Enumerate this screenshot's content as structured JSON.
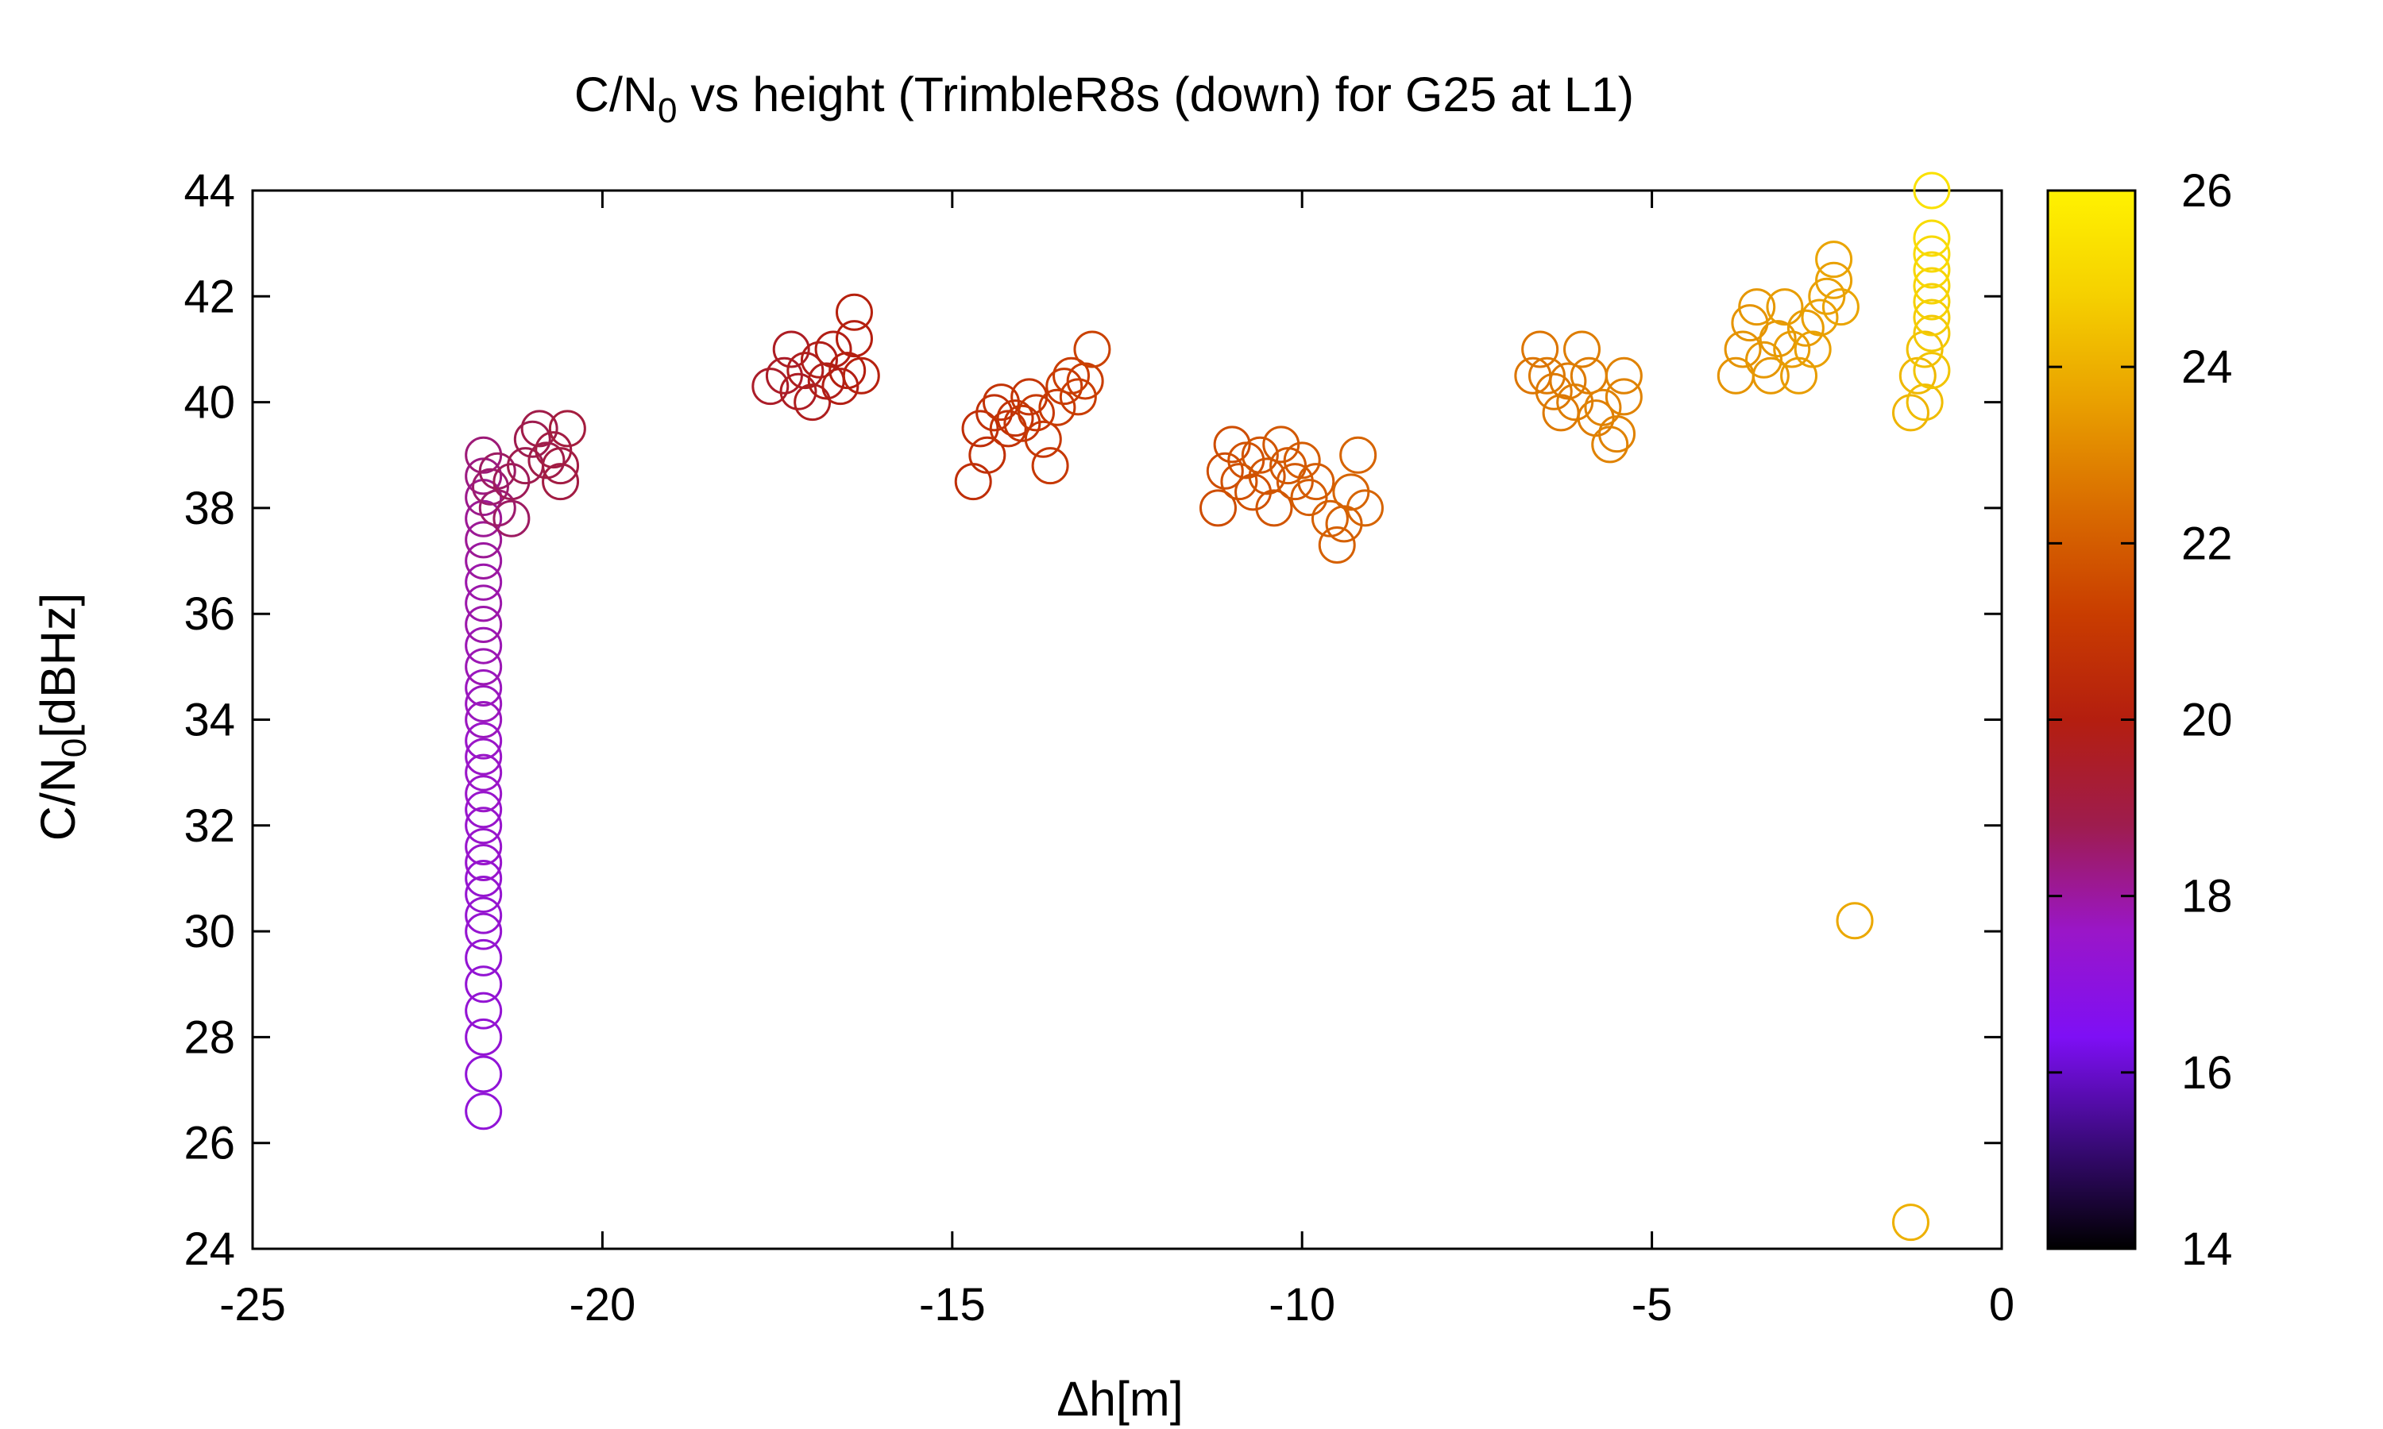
{
  "chart_data": {
    "type": "scatter",
    "title": "C/N0 vs height (TrimbleR8s (down) for G25 at L1)",
    "title_parts": {
      "pre": "C/N",
      "sub": "0",
      "post": " vs height (TrimbleR8s (down) for G25 at L1)"
    },
    "xlabel": "Δh[m]",
    "ylabel": "C/N0[dBHz]",
    "ylabel_parts": {
      "pre": "C/N",
      "sub": "0",
      "post": "[dBHz]"
    },
    "xlim": [
      -25,
      0
    ],
    "ylim": [
      24,
      44
    ],
    "xticks": [
      -25,
      -20,
      -15,
      -10,
      -5,
      0
    ],
    "yticks": [
      24,
      26,
      28,
      30,
      32,
      34,
      36,
      38,
      40,
      42,
      44
    ],
    "xtick_labels": [
      "-25",
      "-20",
      "-15",
      "-10",
      "-5",
      "0"
    ],
    "ytick_labels": [
      "24",
      "26",
      "28",
      "30",
      "32",
      "34",
      "36",
      "38",
      "40",
      "42",
      "44"
    ],
    "colorbar": {
      "range": [
        14,
        26
      ],
      "ticks": [
        14,
        16,
        18,
        20,
        22,
        24,
        26
      ],
      "tick_labels": [
        "14",
        "16",
        "18",
        "20",
        "22",
        "24",
        "26"
      ],
      "palette": [
        "#000000",
        "#3a0a7a",
        "#7e0ff5",
        "#9a16c8",
        "#9e1c4e",
        "#b41e0f",
        "#c93d00",
        "#d96c00",
        "#e9a000",
        "#f5d000",
        "#fff200"
      ]
    },
    "marker": "open-circle",
    "grid": false,
    "legend": "none",
    "series": [
      {
        "points": [
          [
            -21.7,
            26.6,
            17.2
          ],
          [
            -21.7,
            27.3,
            17.2
          ],
          [
            -21.7,
            28.0,
            17.3
          ],
          [
            -21.7,
            28.5,
            17.3
          ],
          [
            -21.7,
            29.0,
            17.3
          ],
          [
            -21.7,
            29.5,
            17.3
          ],
          [
            -21.7,
            30.0,
            17.4
          ],
          [
            -21.7,
            30.3,
            17.4
          ],
          [
            -21.7,
            30.7,
            17.4
          ],
          [
            -21.7,
            31.0,
            17.4
          ],
          [
            -21.7,
            31.3,
            17.5
          ],
          [
            -21.7,
            31.6,
            17.5
          ],
          [
            -21.7,
            32.0,
            17.5
          ],
          [
            -21.7,
            32.3,
            17.5
          ],
          [
            -21.7,
            32.6,
            17.6
          ],
          [
            -21.7,
            33.0,
            17.6
          ],
          [
            -21.7,
            33.3,
            17.6
          ],
          [
            -21.7,
            33.6,
            17.6
          ],
          [
            -21.7,
            34.0,
            17.7
          ],
          [
            -21.7,
            34.3,
            17.7
          ],
          [
            -21.7,
            34.6,
            17.7
          ],
          [
            -21.7,
            35.0,
            17.8
          ],
          [
            -21.7,
            35.4,
            17.8
          ],
          [
            -21.7,
            35.8,
            17.9
          ],
          [
            -21.7,
            36.2,
            17.9
          ],
          [
            -21.7,
            36.6,
            17.9
          ],
          [
            -21.7,
            37.0,
            18.0
          ],
          [
            -21.7,
            37.4,
            18.1
          ],
          [
            -21.7,
            37.8,
            18.1
          ],
          [
            -21.7,
            38.2,
            18.2
          ],
          [
            -21.7,
            38.6,
            18.3
          ],
          [
            -21.7,
            39.0,
            18.4
          ],
          [
            -21.6,
            38.4,
            18.5
          ],
          [
            -21.5,
            38.0,
            18.5
          ],
          [
            -21.5,
            38.7,
            18.6
          ],
          [
            -21.3,
            37.8,
            18.6
          ],
          [
            -21.3,
            38.5,
            18.7
          ],
          [
            -21.1,
            38.8,
            18.8
          ],
          [
            -21.0,
            39.3,
            18.8
          ],
          [
            -20.9,
            39.5,
            18.9
          ],
          [
            -20.8,
            38.9,
            18.9
          ],
          [
            -20.7,
            39.1,
            19.0
          ],
          [
            -20.6,
            38.5,
            19.0
          ],
          [
            -20.6,
            38.8,
            19.0
          ],
          [
            -20.5,
            39.5,
            19.1
          ]
        ]
      },
      {
        "points": [
          [
            -17.6,
            40.3,
            19.5
          ],
          [
            -17.4,
            40.5,
            19.5
          ],
          [
            -17.3,
            41.0,
            19.6
          ],
          [
            -17.2,
            40.2,
            19.6
          ],
          [
            -17.1,
            40.6,
            19.7
          ],
          [
            -17.0,
            40.0,
            19.7
          ],
          [
            -16.9,
            40.8,
            19.8
          ],
          [
            -16.8,
            40.4,
            19.8
          ],
          [
            -16.7,
            41.0,
            19.9
          ],
          [
            -16.6,
            40.3,
            19.9
          ],
          [
            -16.5,
            40.6,
            20.0
          ],
          [
            -16.4,
            41.2,
            20.0
          ],
          [
            -16.4,
            41.7,
            20.1
          ],
          [
            -16.3,
            40.5,
            20.1
          ]
        ]
      },
      {
        "points": [
          [
            -14.7,
            38.5,
            20.6
          ],
          [
            -14.6,
            39.5,
            20.6
          ],
          [
            -14.5,
            39.0,
            20.7
          ],
          [
            -14.4,
            39.8,
            20.7
          ],
          [
            -14.3,
            40.0,
            20.8
          ],
          [
            -14.2,
            39.5,
            20.8
          ],
          [
            -14.1,
            39.7,
            20.8
          ],
          [
            -14.0,
            39.6,
            20.9
          ],
          [
            -13.9,
            40.1,
            20.9
          ],
          [
            -13.8,
            39.8,
            21.0
          ],
          [
            -13.7,
            39.3,
            21.0
          ],
          [
            -13.6,
            38.8,
            21.0
          ],
          [
            -13.5,
            39.9,
            21.1
          ],
          [
            -13.4,
            40.3,
            21.1
          ],
          [
            -13.3,
            40.5,
            21.2
          ],
          [
            -13.2,
            40.1,
            21.2
          ],
          [
            -13.1,
            40.4,
            21.2
          ],
          [
            -13.0,
            41.0,
            21.3
          ]
        ]
      },
      {
        "points": [
          [
            -11.2,
            38.0,
            21.6
          ],
          [
            -11.1,
            38.7,
            21.6
          ],
          [
            -11.0,
            39.2,
            21.6
          ],
          [
            -10.9,
            38.5,
            21.7
          ],
          [
            -10.8,
            38.9,
            21.7
          ],
          [
            -10.7,
            38.3,
            21.7
          ],
          [
            -10.6,
            39.0,
            21.8
          ],
          [
            -10.5,
            38.6,
            21.8
          ],
          [
            -10.4,
            38.0,
            21.8
          ],
          [
            -10.3,
            39.2,
            21.9
          ],
          [
            -10.2,
            38.8,
            21.9
          ],
          [
            -10.1,
            38.5,
            21.9
          ],
          [
            -10.0,
            38.9,
            22.0
          ],
          [
            -9.9,
            38.2,
            22.0
          ],
          [
            -9.8,
            38.5,
            22.0
          ],
          [
            -9.6,
            37.8,
            22.1
          ],
          [
            -9.5,
            37.3,
            22.1
          ],
          [
            -9.4,
            37.7,
            22.1
          ],
          [
            -9.3,
            38.3,
            22.2
          ],
          [
            -9.2,
            39.0,
            22.2
          ],
          [
            -9.1,
            38.0,
            22.2
          ]
        ]
      },
      {
        "points": [
          [
            -6.7,
            40.5,
            22.6
          ],
          [
            -6.6,
            41.0,
            22.6
          ],
          [
            -6.5,
            40.5,
            22.7
          ],
          [
            -6.4,
            40.2,
            22.7
          ],
          [
            -6.3,
            39.8,
            22.7
          ],
          [
            -6.2,
            40.4,
            22.7
          ],
          [
            -6.1,
            40.0,
            22.8
          ],
          [
            -6.0,
            41.0,
            22.8
          ],
          [
            -5.9,
            40.5,
            22.8
          ],
          [
            -5.8,
            39.7,
            22.8
          ],
          [
            -5.7,
            39.9,
            22.9
          ],
          [
            -5.6,
            39.2,
            22.9
          ],
          [
            -5.5,
            39.4,
            22.9
          ],
          [
            -5.4,
            40.1,
            22.9
          ],
          [
            -5.4,
            40.5,
            22.9
          ]
        ]
      },
      {
        "points": [
          [
            -3.8,
            40.5,
            23.3
          ],
          [
            -3.7,
            41.0,
            23.3
          ],
          [
            -3.6,
            41.5,
            23.3
          ],
          [
            -3.5,
            41.8,
            23.4
          ],
          [
            -3.4,
            40.8,
            23.4
          ],
          [
            -3.3,
            40.5,
            23.4
          ],
          [
            -3.2,
            41.2,
            23.4
          ],
          [
            -3.1,
            41.8,
            23.5
          ],
          [
            -3.0,
            41.0,
            23.5
          ],
          [
            -2.9,
            40.5,
            23.5
          ],
          [
            -2.8,
            41.4,
            23.5
          ],
          [
            -2.7,
            41.0,
            23.6
          ],
          [
            -2.6,
            41.6,
            23.6
          ],
          [
            -2.5,
            42.0,
            23.6
          ],
          [
            -2.4,
            42.3,
            23.6
          ],
          [
            -2.4,
            42.7,
            23.7
          ],
          [
            -2.3,
            41.8,
            23.7
          ]
        ]
      },
      {
        "points": [
          [
            -2.1,
            30.2,
            23.8
          ],
          [
            -1.3,
            24.5,
            24.0
          ],
          [
            -1.3,
            39.8,
            24.1
          ],
          [
            -1.2,
            40.5,
            24.2
          ],
          [
            -1.1,
            40.0,
            24.3
          ],
          [
            -1.1,
            41.0,
            24.4
          ],
          [
            -1.0,
            40.6,
            24.5
          ],
          [
            -1.0,
            41.3,
            24.6
          ],
          [
            -1.0,
            41.6,
            24.7
          ],
          [
            -1.0,
            41.9,
            24.8
          ],
          [
            -1.0,
            42.2,
            24.9
          ],
          [
            -1.0,
            42.5,
            25.0
          ],
          [
            -1.0,
            42.8,
            25.1
          ],
          [
            -1.0,
            43.1,
            25.2
          ],
          [
            -1.0,
            44.0,
            25.4
          ]
        ]
      }
    ]
  }
}
